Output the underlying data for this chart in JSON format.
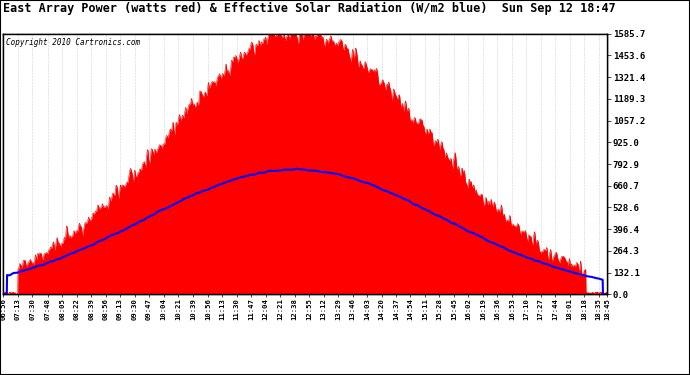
{
  "title": "East Array Power (watts red) & Effective Solar Radiation (W/m2 blue)  Sun Sep 12 18:47",
  "copyright": "Copyright 2010 Cartronics.com",
  "ymax": 1585.7,
  "yticks": [
    0.0,
    132.1,
    264.3,
    396.4,
    528.6,
    660.7,
    792.9,
    925.0,
    1057.2,
    1189.3,
    1321.4,
    1453.6,
    1585.7
  ],
  "xtick_labels": [
    "06:56",
    "07:13",
    "07:30",
    "07:48",
    "08:05",
    "08:22",
    "08:39",
    "08:56",
    "09:13",
    "09:30",
    "09:47",
    "10:04",
    "10:21",
    "10:39",
    "10:56",
    "11:13",
    "11:30",
    "11:47",
    "12:04",
    "12:21",
    "12:38",
    "12:55",
    "13:12",
    "13:29",
    "13:46",
    "14:03",
    "14:20",
    "14:37",
    "14:54",
    "15:11",
    "15:28",
    "15:45",
    "16:02",
    "16:19",
    "16:36",
    "16:53",
    "17:10",
    "17:27",
    "17:44",
    "18:01",
    "18:18",
    "18:35",
    "18:45"
  ],
  "bg_color": "#ffffff",
  "plot_bg_color": "#ffffff",
  "grid_color": "#aaaaaa",
  "red_color": "#ff0000",
  "blue_color": "#0000ff",
  "title_color": "#000000",
  "border_color": "#000000",
  "red_peak_time_min": 762,
  "red_peak_value": 1585.7,
  "red_sigma": 155,
  "blue_peak_time_min": 758,
  "blue_peak_value": 760.0,
  "blue_sigma": 175
}
